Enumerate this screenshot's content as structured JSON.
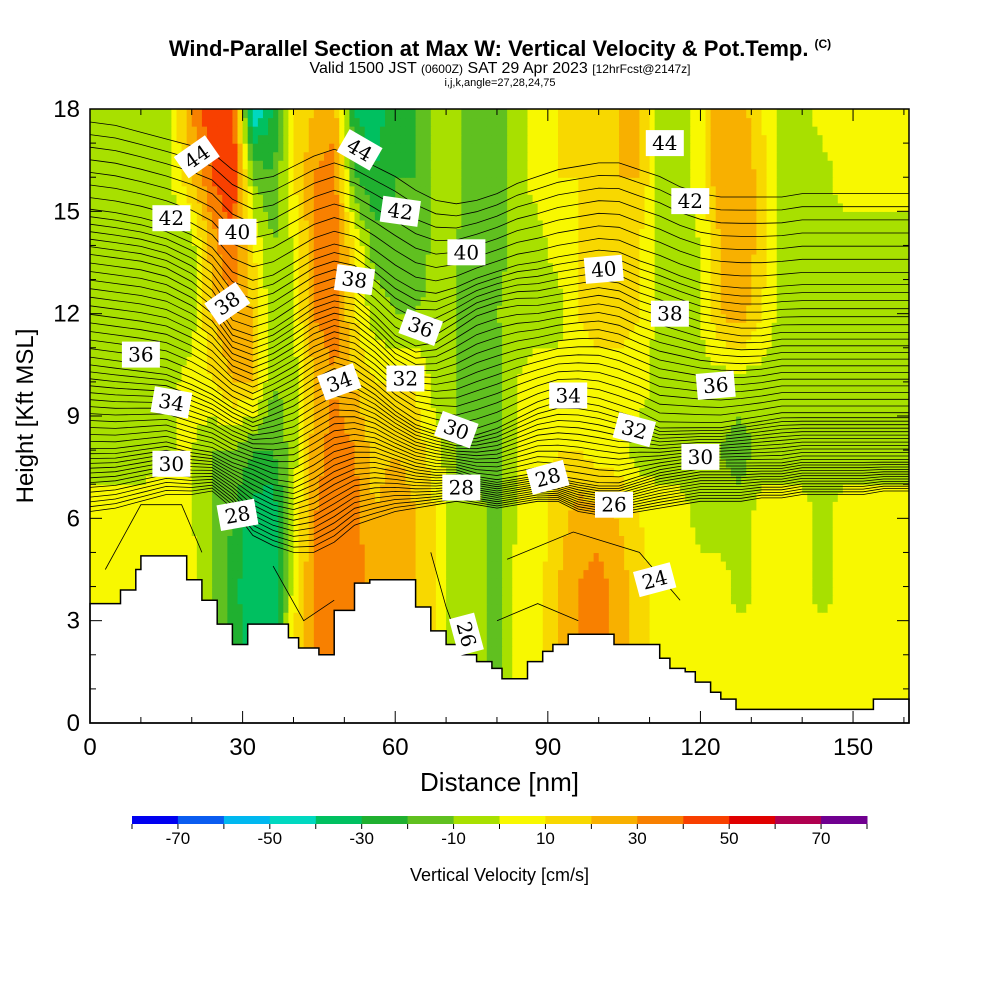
{
  "title": {
    "main": "Wind-Parallel Section at Max W: Vertical Velocity & Pot.Temp.",
    "copyright": "(C)",
    "valid_prefix": "Valid 1500 JST",
    "valid_utc": "(0600Z)",
    "valid_date": "SAT 29 Apr 2023",
    "forecast": "[12hrFcst@2147z]",
    "indices": "i,j,k,angle=27,28,24,75"
  },
  "colorbar": {
    "label": "Vertical Velocity [cm/s]",
    "levels": [
      -80,
      -70,
      -60,
      -50,
      -40,
      -30,
      -20,
      -10,
      0,
      10,
      20,
      30,
      40,
      50,
      60,
      70,
      80
    ],
    "colors": [
      "#0000f0",
      "#0a5cf0",
      "#00b8f0",
      "#00d8c0",
      "#00c060",
      "#20b030",
      "#60c020",
      "#a8e000",
      "#f8f800",
      "#f8d800",
      "#f8b000",
      "#f88000",
      "#f84000",
      "#e00000",
      "#b00050",
      "#700090"
    ],
    "tick_labels": [
      "-70",
      "-50",
      "-30",
      "-10",
      "10",
      "30",
      "50",
      "70"
    ]
  },
  "chart_data": {
    "type": "heatmap",
    "title": "Wind-Parallel Section at Max W: Vertical Velocity & Pot.Temp.",
    "xlabel": "Distance [nm]",
    "ylabel": "Height [Kft MSL]",
    "xlim": [
      0,
      161
    ],
    "ylim": [
      0,
      18
    ],
    "x_ticks": [
      0,
      30,
      60,
      90,
      120,
      150
    ],
    "y_ticks": [
      0,
      3,
      6,
      9,
      12,
      15,
      18
    ],
    "x_tick_labels": [
      "0",
      "30",
      "60",
      "90",
      "120",
      "150"
    ],
    "y_tick_labels": [
      "0",
      "3",
      "6",
      "9",
      "12",
      "15",
      "18"
    ],
    "column_x": [
      0,
      5,
      10,
      15,
      20,
      24,
      28,
      32,
      36,
      40,
      44,
      48,
      52,
      56,
      60,
      64,
      68,
      72,
      76,
      80,
      84,
      88,
      92,
      96,
      100,
      104,
      108,
      112,
      116,
      120,
      124,
      128,
      132,
      136,
      140,
      144,
      148,
      152,
      156,
      161
    ],
    "rows_y": [
      0,
      2,
      4,
      6,
      8,
      10,
      12,
      14,
      16,
      18
    ],
    "vertical_velocity_cm_s": [
      [
        5,
        5,
        5,
        5,
        5,
        -10,
        -20,
        -40,
        -30,
        10,
        30,
        40,
        20,
        20,
        25,
        20,
        10,
        -10,
        -5,
        -15,
        5,
        5,
        20,
        30,
        30,
        20,
        10,
        5,
        10,
        5,
        5,
        5,
        5,
        5,
        5,
        5,
        5,
        5,
        5,
        5
      ],
      [
        5,
        5,
        5,
        5,
        5,
        -10,
        -20,
        -40,
        -35,
        10,
        30,
        40,
        30,
        25,
        25,
        20,
        10,
        -10,
        -5,
        -15,
        5,
        5,
        20,
        30,
        35,
        25,
        15,
        5,
        10,
        5,
        5,
        5,
        5,
        5,
        5,
        5,
        5,
        5,
        5,
        5
      ],
      [
        5,
        5,
        5,
        5,
        5,
        -10,
        -25,
        -40,
        -40,
        5,
        30,
        40,
        35,
        25,
        30,
        20,
        10,
        -10,
        -5,
        -15,
        5,
        5,
        20,
        30,
        35,
        25,
        15,
        5,
        10,
        5,
        5,
        -5,
        5,
        5,
        5,
        -5,
        5,
        5,
        5,
        5
      ],
      [
        5,
        5,
        5,
        5,
        0,
        -10,
        -20,
        -35,
        -40,
        0,
        30,
        35,
        35,
        20,
        30,
        20,
        10,
        -10,
        -5,
        -15,
        0,
        5,
        15,
        25,
        25,
        20,
        10,
        5,
        5,
        -5,
        -5,
        -5,
        5,
        5,
        5,
        -5,
        5,
        5,
        5,
        5
      ],
      [
        -5,
        -5,
        -5,
        0,
        0,
        -10,
        -10,
        -20,
        -20,
        -5,
        25,
        35,
        30,
        15,
        20,
        15,
        5,
        -10,
        -15,
        -15,
        0,
        5,
        10,
        10,
        5,
        5,
        -5,
        -5,
        -5,
        -5,
        -10,
        -15,
        -5,
        -5,
        -5,
        -5,
        -5,
        -5,
        -5,
        -5
      ],
      [
        -5,
        -5,
        -5,
        -5,
        5,
        10,
        20,
        20,
        -10,
        -5,
        20,
        30,
        20,
        10,
        10,
        10,
        -5,
        -10,
        -15,
        -15,
        0,
        5,
        5,
        0,
        5,
        5,
        5,
        -5,
        -5,
        -5,
        -5,
        -5,
        -5,
        -5,
        -5,
        -5,
        -5,
        -5,
        -5,
        -5
      ],
      [
        -5,
        -5,
        -5,
        -10,
        -5,
        20,
        30,
        20,
        -10,
        0,
        30,
        35,
        10,
        -5,
        -10,
        -10,
        -5,
        -10,
        -15,
        -10,
        -5,
        -5,
        -5,
        10,
        15,
        15,
        10,
        -5,
        -5,
        0,
        20,
        25,
        10,
        -5,
        -5,
        -5,
        -5,
        -5,
        -5,
        -5
      ],
      [
        -5,
        -5,
        -5,
        -10,
        -5,
        25,
        40,
        10,
        -10,
        0,
        30,
        40,
        10,
        -15,
        -20,
        -20,
        -5,
        -10,
        -20,
        -15,
        -5,
        -5,
        5,
        10,
        15,
        15,
        10,
        -5,
        -5,
        0,
        20,
        30,
        15,
        -5,
        -5,
        -5,
        -5,
        -5,
        -5,
        -5
      ],
      [
        -5,
        -5,
        -5,
        -5,
        20,
        40,
        50,
        -10,
        -20,
        10,
        30,
        35,
        -20,
        -30,
        -20,
        -20,
        -5,
        -5,
        -20,
        -15,
        -5,
        5,
        10,
        10,
        15,
        20,
        20,
        -5,
        -5,
        5,
        30,
        30,
        15,
        -5,
        -5,
        -5,
        5,
        5,
        5,
        5
      ],
      [
        -5,
        -5,
        -5,
        -5,
        30,
        50,
        50,
        -50,
        -30,
        10,
        20,
        25,
        -30,
        -35,
        -25,
        -20,
        -5,
        -5,
        -20,
        -15,
        -5,
        5,
        10,
        10,
        15,
        20,
        20,
        -5,
        -5,
        5,
        30,
        25,
        10,
        -5,
        -5,
        5,
        5,
        5,
        5,
        5
      ]
    ],
    "terrain_height_kft": [
      3.5,
      3.5,
      3.9,
      4.5,
      4.9,
      4.9,
      4.9,
      4.2,
      3.6,
      2.9,
      2.3,
      2.9,
      2.9,
      2.9,
      2.5,
      2.2,
      2.0,
      3.3,
      4.1,
      4.2,
      4.2,
      4.2,
      3.4,
      2.7,
      2.3,
      2.0,
      1.8,
      1.6,
      1.3,
      1.3,
      1.8,
      2.1,
      2.3,
      2.6,
      2.6,
      2.6,
      2.3,
      2.3,
      2.3,
      1.9,
      1.6,
      1.5,
      1.2,
      0.9,
      0.7,
      0.4,
      0.4,
      0.4,
      0.4,
      0.4,
      0.4,
      0.4,
      0.4,
      0.4,
      0.7,
      0.7,
      0.7,
      0.7,
      0.7,
      0.7,
      0.7,
      0.7
    ],
    "terrain_x_nm": [
      0,
      3,
      6,
      9,
      10,
      13,
      16,
      19,
      22,
      25,
      28,
      31,
      33,
      36,
      39,
      41,
      45,
      48,
      52,
      55,
      58,
      61,
      64,
      67,
      70,
      73,
      76,
      79,
      81,
      85,
      86,
      89,
      91,
      94,
      97,
      100,
      103,
      106,
      109,
      112,
      114,
      117,
      119,
      122,
      124,
      127,
      130,
      133,
      136,
      139,
      142,
      145,
      148,
      151,
      154,
      157,
      158,
      159,
      160,
      161,
      161,
      161
    ],
    "potential_temperature_contours": {
      "levels": [
        24,
        26,
        28,
        30,
        32,
        34,
        36,
        38,
        40,
        42,
        44
      ],
      "base_height_kft": [
        [
          6.2,
          6.3,
          6.5,
          6.7,
          6.7,
          6.8,
          6.3,
          5.5,
          5.2,
          5.0,
          5.0,
          5.3,
          5.8,
          6.0,
          6.2,
          6.3,
          6.4,
          6.5,
          6.4,
          6.3,
          6.4,
          6.5,
          6.5,
          6.2,
          6.1,
          6.1,
          6.2,
          6.3,
          6.4,
          6.5,
          6.5,
          6.5,
          6.6,
          6.6,
          6.7,
          6.7,
          6.7,
          6.7,
          6.8,
          6.8
        ],
        [
          8.0,
          8.0,
          8.1,
          8.2,
          8.0,
          7.9,
          7.6,
          7.4,
          7.1,
          7.0,
          7.3,
          7.7,
          7.9,
          7.9,
          7.7,
          7.5,
          7.4,
          7.4,
          7.2,
          7.1,
          7.2,
          7.3,
          7.2,
          7.1,
          7.0,
          7.0,
          7.2,
          7.4,
          7.5,
          7.6,
          7.6,
          7.6,
          7.6,
          7.6,
          7.7,
          7.7,
          7.7,
          7.7,
          7.7,
          7.7
        ],
        [
          10.6,
          10.5,
          10.4,
          10.3,
          10.0,
          9.7,
          9.3,
          9.0,
          9.3,
          9.6,
          10.0,
          10.3,
          10.1,
          9.7,
          9.2,
          8.8,
          8.6,
          8.4,
          8.5,
          8.7,
          9.0,
          9.3,
          9.5,
          9.5,
          9.4,
          9.2,
          9.0,
          8.7,
          8.7,
          8.7,
          8.7,
          8.8,
          8.9,
          9.0,
          9.0,
          9.0,
          9.0,
          9.0,
          9.0,
          9.0
        ],
        [
          13.8,
          13.7,
          13.6,
          13.4,
          13.0,
          12.5,
          11.6,
          11.4,
          11.6,
          12.0,
          12.4,
          12.6,
          12.5,
          12.0,
          11.4,
          11.1,
          11.2,
          11.6,
          12.0,
          12.2,
          12.3,
          12.3,
          12.4,
          12.5,
          12.6,
          12.5,
          12.2,
          12.0,
          11.8,
          11.6,
          11.5,
          11.4,
          11.4,
          11.5,
          11.5,
          11.5,
          11.5,
          11.5,
          11.5,
          11.5
        ],
        [
          16.6,
          16.5,
          16.3,
          16.1,
          15.9,
          15.7,
          15.2,
          14.9,
          15.0,
          15.3,
          15.6,
          15.8,
          15.6,
          15.3,
          15.0,
          14.6,
          14.3,
          14.2,
          14.3,
          14.5,
          14.8,
          15.0,
          15.2,
          15.3,
          15.4,
          15.4,
          15.2,
          15.0,
          14.7,
          14.5,
          14.4,
          14.4,
          14.4,
          14.4,
          14.5,
          14.5,
          14.5,
          14.5,
          14.5,
          14.5
        ]
      ],
      "labels": [
        {
          "text": "44",
          "x_nm": 21,
          "y_kft": 16.6,
          "angle": -35
        },
        {
          "text": "44",
          "x_nm": 53,
          "y_kft": 16.8,
          "angle": 30
        },
        {
          "text": "44",
          "x_nm": 113,
          "y_kft": 17.0,
          "angle": 0
        },
        {
          "text": "42",
          "x_nm": 16,
          "y_kft": 14.8,
          "angle": 0
        },
        {
          "text": "42",
          "x_nm": 61,
          "y_kft": 15.0,
          "angle": 8
        },
        {
          "text": "42",
          "x_nm": 118,
          "y_kft": 15.3,
          "angle": 0
        },
        {
          "text": "40",
          "x_nm": 29,
          "y_kft": 14.4,
          "angle": 0
        },
        {
          "text": "40",
          "x_nm": 74,
          "y_kft": 13.8,
          "angle": 0
        },
        {
          "text": "40",
          "x_nm": 101,
          "y_kft": 13.3,
          "angle": -5
        },
        {
          "text": "38",
          "x_nm": 27,
          "y_kft": 12.3,
          "angle": -35
        },
        {
          "text": "38",
          "x_nm": 52,
          "y_kft": 13.0,
          "angle": 8
        },
        {
          "text": "38",
          "x_nm": 114,
          "y_kft": 12.0,
          "angle": 0
        },
        {
          "text": "36",
          "x_nm": 10,
          "y_kft": 10.8,
          "angle": 0
        },
        {
          "text": "36",
          "x_nm": 65,
          "y_kft": 11.6,
          "angle": 20
        },
        {
          "text": "36",
          "x_nm": 123,
          "y_kft": 9.9,
          "angle": -5
        },
        {
          "text": "34",
          "x_nm": 16,
          "y_kft": 9.4,
          "angle": 10
        },
        {
          "text": "34",
          "x_nm": 49,
          "y_kft": 10.0,
          "angle": -20
        },
        {
          "text": "34",
          "x_nm": 94,
          "y_kft": 9.6,
          "angle": 0
        },
        {
          "text": "32",
          "x_nm": 62,
          "y_kft": 10.1,
          "angle": 0
        },
        {
          "text": "32",
          "x_nm": 107,
          "y_kft": 8.6,
          "angle": 15
        },
        {
          "text": "30",
          "x_nm": 16,
          "y_kft": 7.6,
          "angle": 0
        },
        {
          "text": "30",
          "x_nm": 72,
          "y_kft": 8.6,
          "angle": 20
        },
        {
          "text": "30",
          "x_nm": 120,
          "y_kft": 7.8,
          "angle": 0
        },
        {
          "text": "28",
          "x_nm": 29,
          "y_kft": 6.1,
          "angle": -10
        },
        {
          "text": "28",
          "x_nm": 73,
          "y_kft": 6.9,
          "angle": 0
        },
        {
          "text": "28",
          "x_nm": 90,
          "y_kft": 7.2,
          "angle": -15
        },
        {
          "text": "26",
          "x_nm": 103,
          "y_kft": 6.4,
          "angle": 0
        },
        {
          "text": "26",
          "x_nm": 74,
          "y_kft": 2.6,
          "angle": 75
        },
        {
          "text": "24",
          "x_nm": 111,
          "y_kft": 4.2,
          "angle": -15
        }
      ]
    }
  }
}
